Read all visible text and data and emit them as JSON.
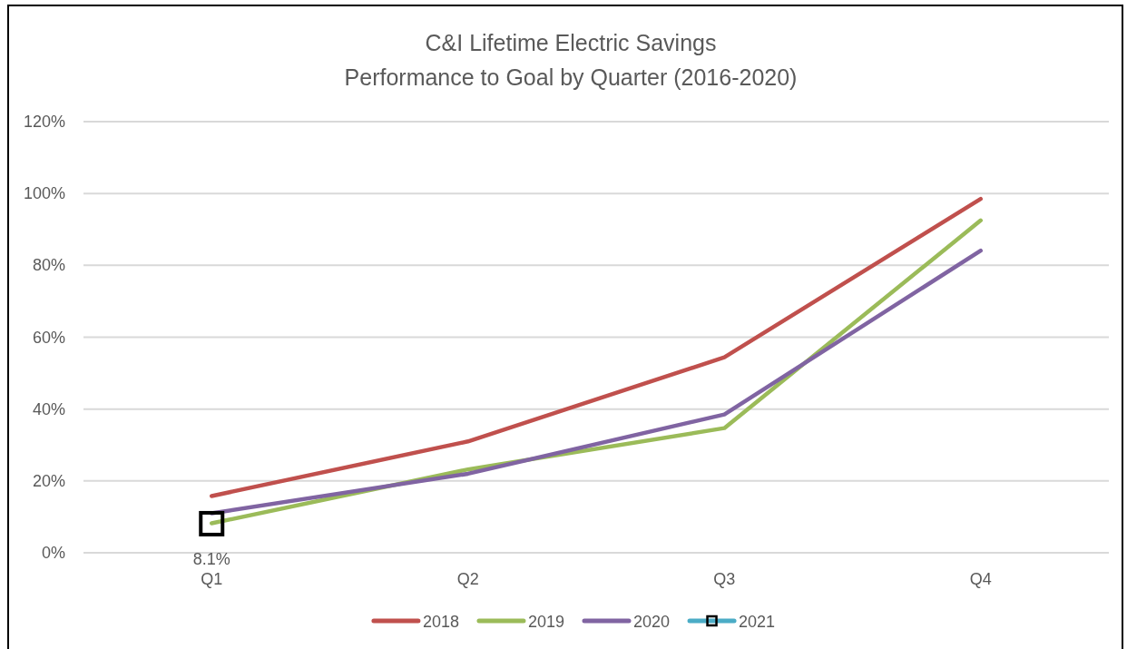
{
  "chart_data": {
    "type": "line",
    "title": "C&I Lifetime Electric Savings",
    "subtitle": "Performance to Goal by Quarter (2016-2020)",
    "categories": [
      "Q1",
      "Q2",
      "Q3",
      "Q4"
    ],
    "series": [
      {
        "name": "2018",
        "color": "#c0504d",
        "values": [
          15.8,
          31,
          54.4,
          98.5
        ]
      },
      {
        "name": "2019",
        "color": "#9bbb59",
        "values": [
          8.2,
          23.2,
          34.7,
          92.5
        ]
      },
      {
        "name": "2020",
        "color": "#8064a2",
        "values": [
          11,
          22,
          38.5,
          84.1
        ]
      },
      {
        "name": "2021",
        "color": "#4bacc6",
        "colors": [
          "#000000",
          null,
          null,
          null
        ],
        "marker": "square",
        "values": [
          8.1,
          null,
          null,
          null
        ],
        "value_labels": [
          "8.1%",
          null,
          null,
          null
        ]
      }
    ],
    "ylim": [
      0,
      120
    ],
    "yticks": [
      {
        "value": 0,
        "label": "0%"
      },
      {
        "value": 20,
        "label": "20%"
      },
      {
        "value": 40,
        "label": "40%"
      },
      {
        "value": 60,
        "label": "60%"
      },
      {
        "value": 80,
        "label": "80%"
      },
      {
        "value": 100,
        "label": "100%"
      },
      {
        "value": 120,
        "label": "120%"
      }
    ],
    "grid": "y",
    "legend": "bottom",
    "line_style": "solid"
  }
}
